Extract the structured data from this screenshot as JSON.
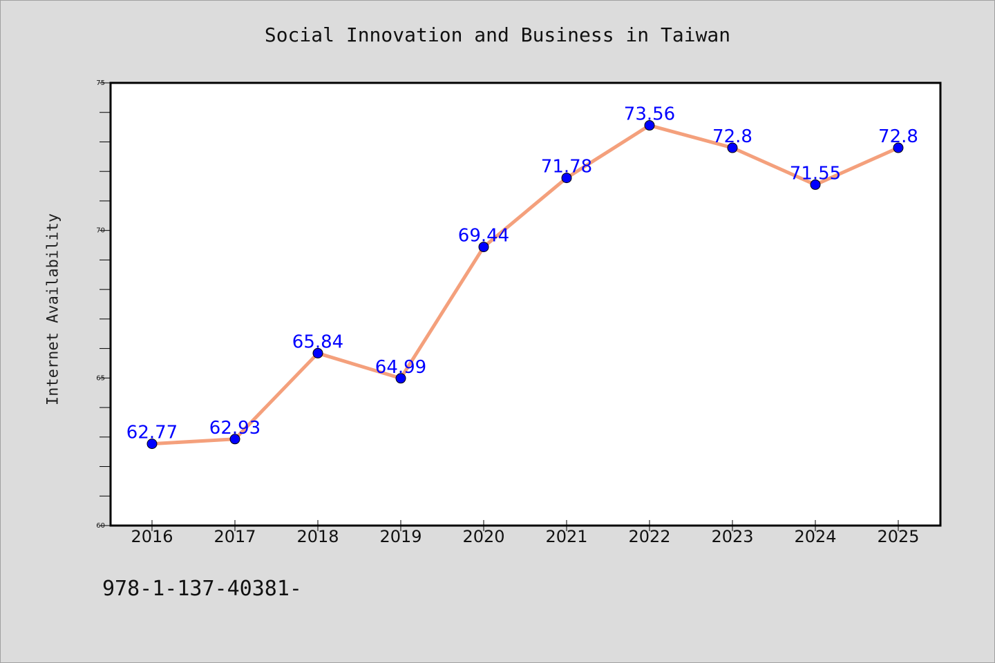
{
  "title": "Social Innovation and Business in Taiwan",
  "footer": "978-1-137-40381-",
  "chart_data": {
    "type": "line",
    "title": "Social Innovation and Business in Taiwan",
    "xlabel": "",
    "ylabel": "Internet Availability",
    "categories": [
      "2016",
      "2017",
      "2018",
      "2019",
      "2020",
      "2021",
      "2022",
      "2023",
      "2024",
      "2025"
    ],
    "series": [
      {
        "values": [
          62.77,
          62.93,
          65.84,
          64.99,
          69.44,
          71.78,
          73.56,
          72.8,
          71.55,
          72.8
        ],
        "labels": [
          "62.77",
          "62.93",
          "65.84",
          "64.99",
          "69.44",
          "71.78",
          "73.56",
          "72.8",
          "71.55",
          "72.8"
        ],
        "line_color": "#f4a07c",
        "marker_color": "#0000ff"
      }
    ],
    "ylim": [
      60,
      75
    ],
    "yticks": [
      60,
      65,
      70,
      75
    ],
    "ytick_labels": [
      "60",
      "65",
      "70",
      "75"
    ],
    "minor_step": 1,
    "grid": false,
    "legend": "none",
    "colors": {
      "background": "#dcdcdc",
      "plot_background": "#ffffff",
      "label": "#0000ff"
    }
  }
}
